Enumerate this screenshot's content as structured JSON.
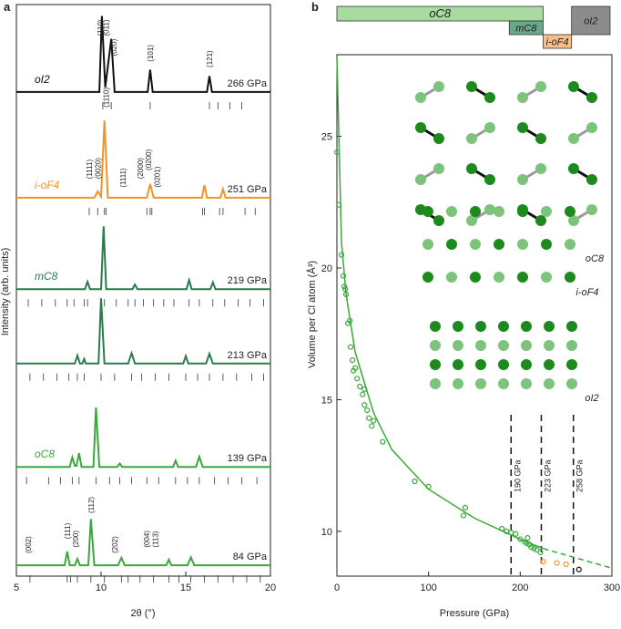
{
  "chart_data": [
    {
      "type": "line",
      "panel_label": "a",
      "xlabel": "2θ (°)",
      "ylabel": "Intensity (arb. units)",
      "xlim": [
        5,
        20
      ],
      "xticks": [
        5,
        10,
        15,
        20
      ],
      "ylim": [
        0,
        100
      ],
      "series": [
        {
          "name": "266 GPa",
          "label": "oI2",
          "color": "#111111",
          "x": [
            5,
            9.9,
            10.05,
            10.25,
            10.6,
            10.8,
            12.75,
            12.9,
            13.05,
            16.25,
            16.4,
            16.55,
            20
          ],
          "values": [
            84.7,
            84.7,
            98,
            85.5,
            94,
            84.7,
            84.7,
            88.6,
            84.7,
            84.7,
            87.5,
            84.7,
            84.7
          ],
          "reflections": [
            10.1,
            10.6,
            12.9,
            16.4,
            16.9,
            17.6,
            18.3
          ]
        },
        {
          "name": "251 GPa",
          "label": "i-oF4",
          "color": "#f39325",
          "x": [
            5,
            9.6,
            9.8,
            10.0,
            10.2,
            10.4,
            12.7,
            12.9,
            13.1,
            15.95,
            16.1,
            16.25,
            17.05,
            17.2,
            17.35,
            20
          ],
          "values": [
            66.2,
            66.2,
            67.3,
            66.4,
            79.7,
            66.2,
            66.2,
            68.6,
            66.2,
            66.2,
            68.4,
            66.2,
            66.2,
            67.7,
            66.2,
            66.2
          ],
          "reflections": [
            9.3,
            9.8,
            10.2,
            10.3,
            12.7,
            12.9,
            13.0,
            16.0,
            16.1,
            17.0,
            17.2,
            18.5,
            19.1
          ]
        },
        {
          "name": "219 GPa",
          "label": "mC8",
          "color": "#2a7a4e",
          "x": [
            5,
            9.05,
            9.2,
            9.35,
            10.0,
            10.15,
            10.3,
            11.85,
            12.0,
            12.15,
            15.05,
            15.2,
            15.35,
            16.45,
            16.6,
            16.75,
            20
          ],
          "values": [
            50.2,
            50.2,
            51.5,
            50.2,
            50.2,
            61.2,
            50.2,
            50.2,
            51,
            50.2,
            50.2,
            51.8,
            50.2,
            50.2,
            51.4,
            50.2,
            50.2
          ],
          "reflections": [
            5.7,
            6.5,
            7.3,
            8.0,
            8.4,
            9.0,
            9.2,
            10.2,
            10.9,
            11.6,
            12.0,
            12.5,
            13.1,
            13.7,
            14.3,
            15.2,
            15.8,
            16.6,
            17.3,
            18.1,
            18.8,
            19.6
          ]
        },
        {
          "name": "213 GPa",
          "color": "#2a7a4e",
          "x": [
            5,
            8.45,
            8.6,
            8.75,
            8.9,
            9.0,
            9.1,
            9.85,
            10.0,
            10.2,
            11.6,
            11.8,
            12.0,
            14.85,
            15.0,
            15.15,
            16.2,
            16.4,
            16.6,
            20
          ],
          "values": [
            37.2,
            37.2,
            38.6,
            37.2,
            37.2,
            38.0,
            37.2,
            37.2,
            48.6,
            37.2,
            37.2,
            39.0,
            37.2,
            37.2,
            38.5,
            37.2,
            37.2,
            38.9,
            37.2,
            37.2
          ],
          "reflections": [
            5.8,
            6.6,
            7.4,
            8.1,
            8.6,
            9.0,
            10.0,
            10.8,
            11.8,
            12.4,
            13.2,
            14.0,
            15.0,
            15.7,
            16.4,
            17.2,
            18.0,
            18.9,
            19.6
          ]
        },
        {
          "name": "139 GPa",
          "label": "oC8",
          "color": "#3aa83a",
          "x": [
            5,
            8.15,
            8.3,
            8.45,
            8.55,
            8.7,
            8.85,
            9.55,
            9.7,
            9.9,
            10.95,
            11.1,
            11.25,
            14.25,
            14.4,
            14.55,
            15.6,
            15.8,
            16.0,
            20
          ],
          "values": [
            19.1,
            19.1,
            20.8,
            19.3,
            19.3,
            21.5,
            19.1,
            19.1,
            29.5,
            19.1,
            19.1,
            19.7,
            19.1,
            19.1,
            20.2,
            19.1,
            19.1,
            20.9,
            19.1,
            19.1
          ],
          "reflections": [
            5.6,
            6.9,
            7.6,
            8.3,
            8.7,
            9.7,
            10.5,
            11.1,
            11.8,
            12.7,
            13.4,
            14.4,
            15.1,
            15.8,
            16.7,
            17.5,
            18.3,
            19.2
          ]
        },
        {
          "name": "84 GPa",
          "color": "#3aa83a",
          "x": [
            5,
            7.85,
            8.0,
            8.15,
            8.45,
            8.6,
            8.75,
            9.25,
            9.4,
            9.6,
            11.0,
            11.2,
            11.4,
            13.85,
            14.0,
            14.15,
            15.1,
            15.3,
            15.5,
            20
          ],
          "values": [
            1.9,
            1.9,
            4.3,
            1.9,
            1.9,
            3.0,
            1.9,
            1.9,
            10.0,
            1.9,
            1.9,
            3.2,
            1.9,
            1.9,
            2.9,
            1.9,
            1.9,
            3.3,
            1.9,
            1.9
          ],
          "reflections": [
            5.8,
            8.0,
            8.2,
            8.6,
            9.4,
            10.2,
            11.2,
            11.6,
            12.3,
            13.1,
            14.0,
            14.6,
            15.3,
            16.1,
            16.9,
            17.8,
            18.6,
            19.4
          ]
        }
      ],
      "annotations": [
        {
          "text": "(110)",
          "x": 9.95,
          "y": 94.5
        },
        {
          "text": "(011)",
          "x": 10.3,
          "y": 94.5
        },
        {
          "text": "(020)",
          "x": 10.75,
          "y": 91
        },
        {
          "text": "(101)",
          "x": 12.9,
          "y": 90
        },
        {
          "text": "(121)",
          "x": 16.4,
          "y": 89
        },
        {
          "text": "(1111)",
          "x": 9.3,
          "y": 69.5
        },
        {
          "text": "(0020)",
          "x": 9.8,
          "y": 69.5
        },
        {
          "text": "(1110)",
          "x": 10.3,
          "y": 82
        },
        {
          "text": "(1111)",
          "x": 11.3,
          "y": 68
        },
        {
          "text": "(2000)",
          "x": 12.3,
          "y": 69.5
        },
        {
          "text": "(0200)",
          "x": 12.8,
          "y": 71
        },
        {
          "text": "(0201)",
          "x": 13.3,
          "y": 68
        },
        {
          "text": "(002)",
          "x": 5.7,
          "y": 4
        },
        {
          "text": "(111)",
          "x": 8.0,
          "y": 6.5
        },
        {
          "text": "(200)",
          "x": 8.5,
          "y": 5
        },
        {
          "text": "(112)",
          "x": 9.4,
          "y": 11
        },
        {
          "text": "(202)",
          "x": 10.8,
          "y": 4
        },
        {
          "text": "(004)",
          "x": 12.7,
          "y": 5
        },
        {
          "text": "(113)",
          "x": 13.2,
          "y": 5
        }
      ]
    },
    {
      "type": "scatter",
      "panel_label": "b",
      "xlabel": "Pressure (GPa)",
      "ylabel": "Volume per Cl atom (Å³)",
      "xlim": [
        0,
        300
      ],
      "xticks": [
        0,
        100,
        200,
        300
      ],
      "ylim": [
        8.3,
        28.1
      ],
      "yticks": [
        10,
        15,
        20,
        25
      ],
      "phases": [
        {
          "name": "oC8",
          "start": 0,
          "end": 225,
          "color": "#a8dba0"
        },
        {
          "name": "mC8",
          "start": 188,
          "end": 225,
          "color": "#6aa88a"
        },
        {
          "name": "i-oF4",
          "start": 225,
          "end": 256,
          "color": "#f7c08a"
        },
        {
          "name": "oI2",
          "start": 256,
          "end": 298,
          "color": "#8c8c8c"
        }
      ],
      "transitions": [
        {
          "value": 190,
          "label": "190 GPa"
        },
        {
          "value": 223,
          "label": "223 GPa"
        },
        {
          "value": 258,
          "label": "258 GPa"
        }
      ],
      "structure_labels": [
        "oC8",
        "i-oF4",
        "oI2"
      ],
      "series": [
        {
          "style": "line",
          "color": "#3aa83a",
          "x": [
            0,
            5,
            10,
            20,
            40,
            60,
            100,
            150,
            200,
            225
          ],
          "values": [
            28,
            21,
            19,
            16.8,
            14.5,
            13.1,
            11.6,
            10.5,
            9.7,
            9.35
          ]
        },
        {
          "style": "dashed",
          "color": "#3aa83a",
          "x": [
            225,
            260,
            300
          ],
          "values": [
            9.35,
            9.0,
            8.6
          ]
        },
        {
          "style": "markers",
          "color": "#3aa83a",
          "x": [
            0,
            2,
            5,
            7,
            8,
            9,
            10,
            12,
            14,
            15,
            17,
            18,
            20,
            22,
            25,
            28,
            30,
            30,
            33,
            35,
            38,
            40,
            50,
            85,
            100,
            140,
            138,
            180,
            185,
            190,
            195,
            200,
            205,
            207,
            208,
            210,
            212,
            215,
            218,
            222
          ],
          "values": [
            24.4,
            22.4,
            20.5,
            19.7,
            19.3,
            19.2,
            19,
            17.9,
            18,
            17,
            16.5,
            16.1,
            16.2,
            15.8,
            15.5,
            15.2,
            14.8,
            15.4,
            14.6,
            14.3,
            14.0,
            14.2,
            13.4,
            11.9,
            11.7,
            10.9,
            10.6,
            10.1,
            10.0,
            9.95,
            9.9,
            9.7,
            9.6,
            9.55,
            9.75,
            9.5,
            9.4,
            9.35,
            9.3,
            9.2
          ]
        },
        {
          "style": "markers",
          "color": "#f39325",
          "x": [
            225,
            240,
            250
          ],
          "values": [
            8.85,
            8.8,
            8.75
          ]
        },
        {
          "style": "markers",
          "color": "#111111",
          "x": [
            264
          ],
          "values": [
            8.55
          ]
        }
      ]
    }
  ]
}
